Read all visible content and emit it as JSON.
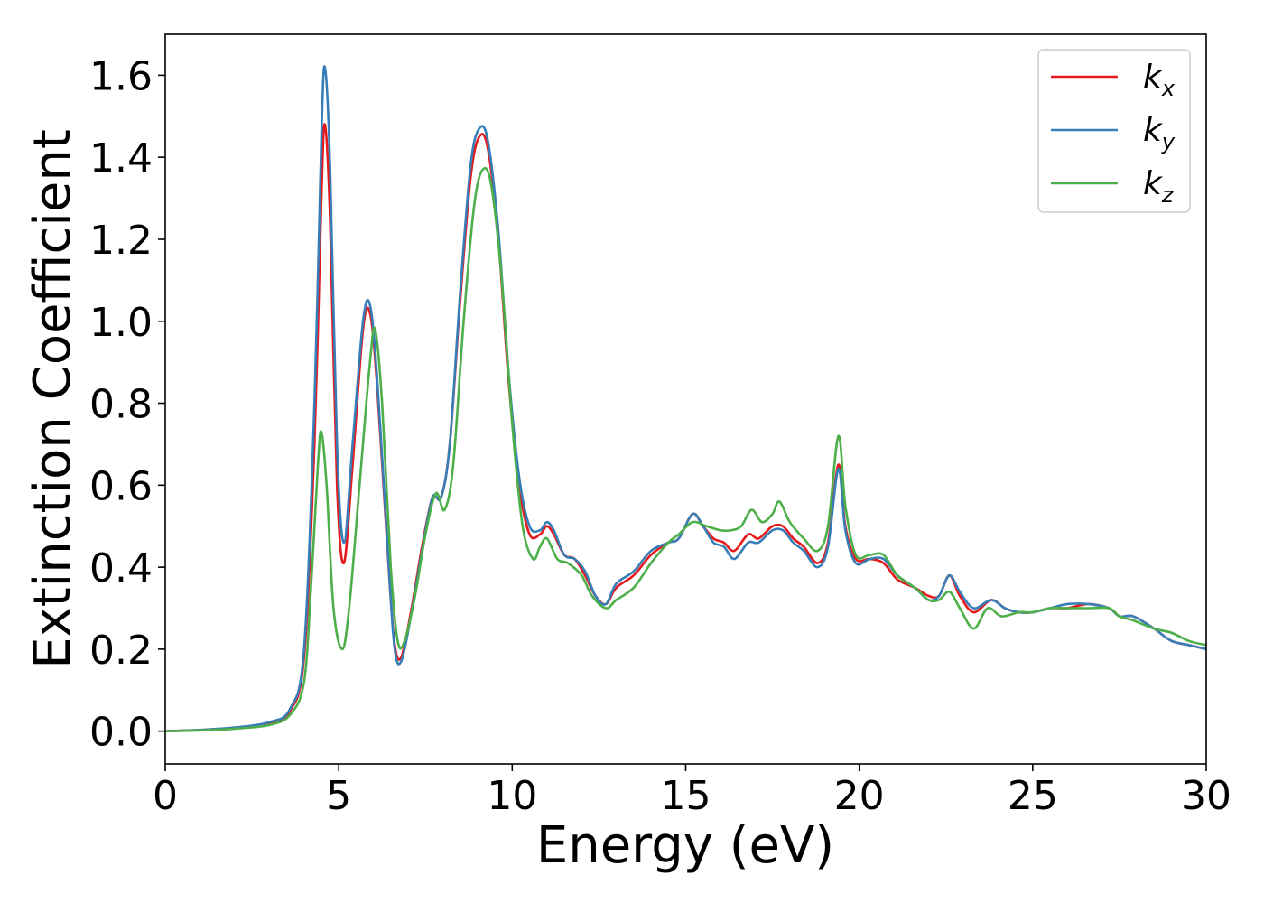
{
  "chart_data": {
    "type": "line",
    "xlabel": "Energy (eV)",
    "ylabel": "Extinction Coefficient",
    "xlim": [
      0,
      30
    ],
    "ylim": [
      -0.08,
      1.7
    ],
    "xticks": [
      0,
      5,
      10,
      15,
      20,
      25,
      30
    ],
    "yticks": [
      0.0,
      0.2,
      0.4,
      0.6,
      0.8,
      1.0,
      1.2,
      1.4,
      1.6
    ],
    "xtick_labels": [
      "0",
      "5",
      "10",
      "15",
      "20",
      "25",
      "30"
    ],
    "ytick_labels": [
      "0.0",
      "0.2",
      "0.4",
      "0.6",
      "0.8",
      "1.0",
      "1.2",
      "1.4",
      "1.6"
    ],
    "grid": false,
    "legend_position": "top-right",
    "series": [
      {
        "name": "k_x",
        "label_main": "k",
        "label_sub": "x",
        "color": "#e41a1c",
        "points": [
          [
            0,
            0.0
          ],
          [
            1,
            0.003
          ],
          [
            2,
            0.008
          ],
          [
            3,
            0.02
          ],
          [
            3.6,
            0.05
          ],
          [
            4.0,
            0.18
          ],
          [
            4.3,
            0.7
          ],
          [
            4.5,
            1.3
          ],
          [
            4.6,
            1.48
          ],
          [
            4.75,
            1.25
          ],
          [
            4.95,
            0.6
          ],
          [
            5.15,
            0.41
          ],
          [
            5.4,
            0.65
          ],
          [
            5.7,
            0.98
          ],
          [
            5.9,
            1.02
          ],
          [
            6.1,
            0.85
          ],
          [
            6.4,
            0.45
          ],
          [
            6.6,
            0.22
          ],
          [
            6.8,
            0.18
          ],
          [
            7.1,
            0.3
          ],
          [
            7.4,
            0.45
          ],
          [
            7.7,
            0.57
          ],
          [
            7.95,
            0.57
          ],
          [
            8.2,
            0.7
          ],
          [
            8.5,
            1.05
          ],
          [
            8.8,
            1.35
          ],
          [
            9.05,
            1.45
          ],
          [
            9.3,
            1.42
          ],
          [
            9.6,
            1.2
          ],
          [
            9.9,
            0.85
          ],
          [
            10.2,
            0.6
          ],
          [
            10.5,
            0.48
          ],
          [
            10.8,
            0.48
          ],
          [
            11.0,
            0.5
          ],
          [
            11.2,
            0.48
          ],
          [
            11.5,
            0.43
          ],
          [
            11.8,
            0.42
          ],
          [
            12.1,
            0.38
          ],
          [
            12.4,
            0.33
          ],
          [
            12.7,
            0.31
          ],
          [
            13.0,
            0.35
          ],
          [
            13.5,
            0.38
          ],
          [
            14.0,
            0.43
          ],
          [
            14.5,
            0.46
          ],
          [
            14.8,
            0.47
          ],
          [
            15.2,
            0.53
          ],
          [
            15.5,
            0.5
          ],
          [
            15.8,
            0.47
          ],
          [
            16.1,
            0.46
          ],
          [
            16.4,
            0.44
          ],
          [
            16.8,
            0.48
          ],
          [
            17.1,
            0.47
          ],
          [
            17.5,
            0.5
          ],
          [
            17.8,
            0.5
          ],
          [
            18.1,
            0.47
          ],
          [
            18.4,
            0.45
          ],
          [
            18.8,
            0.41
          ],
          [
            19.1,
            0.46
          ],
          [
            19.4,
            0.65
          ],
          [
            19.6,
            0.5
          ],
          [
            19.9,
            0.42
          ],
          [
            20.3,
            0.42
          ],
          [
            20.7,
            0.41
          ],
          [
            21.1,
            0.37
          ],
          [
            21.6,
            0.35
          ],
          [
            22.0,
            0.33
          ],
          [
            22.3,
            0.33
          ],
          [
            22.6,
            0.38
          ],
          [
            22.9,
            0.33
          ],
          [
            23.3,
            0.29
          ],
          [
            23.8,
            0.32
          ],
          [
            24.2,
            0.3
          ],
          [
            24.6,
            0.29
          ],
          [
            25.0,
            0.29
          ],
          [
            25.5,
            0.3
          ],
          [
            26.0,
            0.3
          ],
          [
            26.6,
            0.31
          ],
          [
            27.2,
            0.3
          ],
          [
            27.5,
            0.28
          ],
          [
            27.9,
            0.28
          ],
          [
            28.5,
            0.25
          ],
          [
            29.0,
            0.22
          ],
          [
            29.5,
            0.21
          ],
          [
            30.0,
            0.2
          ]
        ]
      },
      {
        "name": "k_y",
        "label_main": "k",
        "label_sub": "y",
        "color": "#377eb8",
        "points": [
          [
            0,
            0.0
          ],
          [
            1,
            0.003
          ],
          [
            2,
            0.009
          ],
          [
            3,
            0.022
          ],
          [
            3.6,
            0.055
          ],
          [
            4.0,
            0.2
          ],
          [
            4.3,
            0.8
          ],
          [
            4.5,
            1.45
          ],
          [
            4.6,
            1.62
          ],
          [
            4.75,
            1.38
          ],
          [
            4.95,
            0.7
          ],
          [
            5.15,
            0.46
          ],
          [
            5.4,
            0.7
          ],
          [
            5.7,
            1.0
          ],
          [
            5.9,
            1.04
          ],
          [
            6.1,
            0.87
          ],
          [
            6.4,
            0.46
          ],
          [
            6.6,
            0.21
          ],
          [
            6.8,
            0.17
          ],
          [
            7.1,
            0.29
          ],
          [
            7.4,
            0.44
          ],
          [
            7.7,
            0.57
          ],
          [
            7.95,
            0.57
          ],
          [
            8.2,
            0.7
          ],
          [
            8.5,
            1.07
          ],
          [
            8.8,
            1.38
          ],
          [
            9.05,
            1.47
          ],
          [
            9.3,
            1.44
          ],
          [
            9.6,
            1.22
          ],
          [
            9.9,
            0.87
          ],
          [
            10.2,
            0.62
          ],
          [
            10.5,
            0.5
          ],
          [
            10.8,
            0.49
          ],
          [
            11.0,
            0.51
          ],
          [
            11.2,
            0.49
          ],
          [
            11.5,
            0.43
          ],
          [
            11.8,
            0.42
          ],
          [
            12.1,
            0.39
          ],
          [
            12.4,
            0.33
          ],
          [
            12.7,
            0.31
          ],
          [
            13.0,
            0.36
          ],
          [
            13.5,
            0.39
          ],
          [
            14.0,
            0.44
          ],
          [
            14.5,
            0.46
          ],
          [
            14.8,
            0.47
          ],
          [
            15.2,
            0.53
          ],
          [
            15.5,
            0.5
          ],
          [
            15.8,
            0.46
          ],
          [
            16.1,
            0.45
          ],
          [
            16.4,
            0.42
          ],
          [
            16.8,
            0.46
          ],
          [
            17.1,
            0.46
          ],
          [
            17.5,
            0.49
          ],
          [
            17.8,
            0.49
          ],
          [
            18.1,
            0.46
          ],
          [
            18.4,
            0.44
          ],
          [
            18.8,
            0.4
          ],
          [
            19.1,
            0.45
          ],
          [
            19.4,
            0.64
          ],
          [
            19.6,
            0.49
          ],
          [
            19.9,
            0.41
          ],
          [
            20.3,
            0.42
          ],
          [
            20.7,
            0.42
          ],
          [
            21.1,
            0.38
          ],
          [
            21.6,
            0.35
          ],
          [
            22.0,
            0.32
          ],
          [
            22.3,
            0.33
          ],
          [
            22.6,
            0.38
          ],
          [
            22.9,
            0.34
          ],
          [
            23.3,
            0.3
          ],
          [
            23.8,
            0.32
          ],
          [
            24.2,
            0.3
          ],
          [
            24.6,
            0.29
          ],
          [
            25.0,
            0.29
          ],
          [
            25.5,
            0.3
          ],
          [
            26.0,
            0.31
          ],
          [
            26.6,
            0.31
          ],
          [
            27.2,
            0.3
          ],
          [
            27.5,
            0.28
          ],
          [
            27.9,
            0.28
          ],
          [
            28.5,
            0.25
          ],
          [
            29.0,
            0.22
          ],
          [
            29.5,
            0.21
          ],
          [
            30.0,
            0.2
          ]
        ]
      },
      {
        "name": "k_z",
        "label_main": "k",
        "label_sub": "z",
        "color": "#4daf4a",
        "points": [
          [
            0,
            0.0
          ],
          [
            1,
            0.002
          ],
          [
            2,
            0.006
          ],
          [
            3,
            0.015
          ],
          [
            3.6,
            0.04
          ],
          [
            4.0,
            0.12
          ],
          [
            4.2,
            0.35
          ],
          [
            4.4,
            0.65
          ],
          [
            4.5,
            0.73
          ],
          [
            4.65,
            0.6
          ],
          [
            4.85,
            0.3
          ],
          [
            5.1,
            0.2
          ],
          [
            5.3,
            0.3
          ],
          [
            5.6,
            0.6
          ],
          [
            5.9,
            0.9
          ],
          [
            6.05,
            0.98
          ],
          [
            6.25,
            0.8
          ],
          [
            6.5,
            0.4
          ],
          [
            6.7,
            0.22
          ],
          [
            6.9,
            0.22
          ],
          [
            7.2,
            0.33
          ],
          [
            7.5,
            0.48
          ],
          [
            7.8,
            0.58
          ],
          [
            8.05,
            0.54
          ],
          [
            8.3,
            0.65
          ],
          [
            8.6,
            1.0
          ],
          [
            8.9,
            1.28
          ],
          [
            9.15,
            1.37
          ],
          [
            9.4,
            1.33
          ],
          [
            9.7,
            1.1
          ],
          [
            10.0,
            0.75
          ],
          [
            10.3,
            0.5
          ],
          [
            10.6,
            0.42
          ],
          [
            10.8,
            0.45
          ],
          [
            11.0,
            0.47
          ],
          [
            11.3,
            0.42
          ],
          [
            11.6,
            0.41
          ],
          [
            12.0,
            0.38
          ],
          [
            12.3,
            0.33
          ],
          [
            12.7,
            0.3
          ],
          [
            13.0,
            0.32
          ],
          [
            13.5,
            0.35
          ],
          [
            14.0,
            0.41
          ],
          [
            14.5,
            0.46
          ],
          [
            14.8,
            0.48
          ],
          [
            15.2,
            0.51
          ],
          [
            15.6,
            0.5
          ],
          [
            16.0,
            0.49
          ],
          [
            16.3,
            0.49
          ],
          [
            16.6,
            0.5
          ],
          [
            16.9,
            0.54
          ],
          [
            17.2,
            0.51
          ],
          [
            17.5,
            0.53
          ],
          [
            17.7,
            0.56
          ],
          [
            18.0,
            0.51
          ],
          [
            18.4,
            0.47
          ],
          [
            18.8,
            0.44
          ],
          [
            19.1,
            0.5
          ],
          [
            19.4,
            0.72
          ],
          [
            19.6,
            0.55
          ],
          [
            19.9,
            0.43
          ],
          [
            20.3,
            0.43
          ],
          [
            20.7,
            0.43
          ],
          [
            21.1,
            0.38
          ],
          [
            21.6,
            0.35
          ],
          [
            22.0,
            0.32
          ],
          [
            22.3,
            0.32
          ],
          [
            22.6,
            0.34
          ],
          [
            22.9,
            0.3
          ],
          [
            23.3,
            0.25
          ],
          [
            23.7,
            0.3
          ],
          [
            24.1,
            0.28
          ],
          [
            24.6,
            0.29
          ],
          [
            25.0,
            0.29
          ],
          [
            25.5,
            0.3
          ],
          [
            26.0,
            0.3
          ],
          [
            26.6,
            0.3
          ],
          [
            27.2,
            0.3
          ],
          [
            27.5,
            0.28
          ],
          [
            27.9,
            0.27
          ],
          [
            28.5,
            0.25
          ],
          [
            29.0,
            0.24
          ],
          [
            29.5,
            0.22
          ],
          [
            30.0,
            0.21
          ]
        ]
      }
    ]
  }
}
